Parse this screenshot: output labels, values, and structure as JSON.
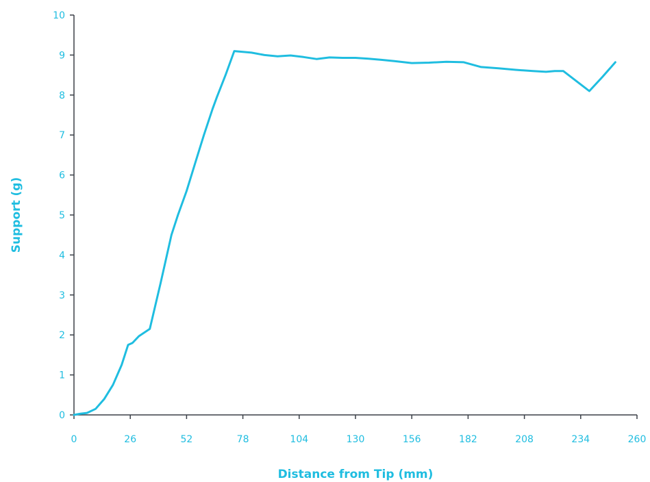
{
  "chart_data": {
    "type": "line",
    "title": "",
    "xlabel": "Distance from Tip (mm)",
    "ylabel": "Support (g)",
    "xlim": [
      0,
      260
    ],
    "ylim": [
      0,
      10
    ],
    "x_ticks": [
      0,
      26,
      52,
      78,
      104,
      130,
      156,
      182,
      208,
      234,
      260
    ],
    "y_ticks": [
      0,
      1,
      2,
      3,
      4,
      5,
      6,
      7,
      8,
      9,
      10
    ],
    "grid": false,
    "colors": {
      "axis": "#3a3f47",
      "text": "#1fbde0",
      "line": "#1fbde0"
    },
    "series": [
      {
        "x": [
          0,
          3,
          6,
          10,
          14,
          18,
          22,
          25,
          27,
          30,
          35,
          40,
          45,
          48,
          52,
          56,
          60,
          64,
          66,
          70,
          74,
          78,
          82,
          88,
          94,
          100,
          106,
          112,
          118,
          124,
          130,
          136,
          142,
          148,
          156,
          164,
          172,
          180,
          188,
          196,
          204,
          212,
          218,
          222,
          226,
          232,
          238,
          244,
          250
        ],
        "y": [
          0.0,
          0.03,
          0.05,
          0.15,
          0.4,
          0.75,
          1.25,
          1.75,
          1.8,
          1.97,
          2.15,
          3.3,
          4.5,
          5.0,
          5.6,
          6.3,
          7.0,
          7.65,
          7.95,
          8.5,
          9.1,
          9.08,
          9.06,
          9.0,
          8.97,
          8.99,
          8.95,
          8.9,
          8.94,
          8.93,
          8.93,
          8.91,
          8.88,
          8.85,
          8.8,
          8.81,
          8.83,
          8.82,
          8.7,
          8.67,
          8.63,
          8.6,
          8.58,
          8.6,
          8.6,
          8.35,
          8.1,
          8.45,
          8.82
        ]
      }
    ]
  }
}
